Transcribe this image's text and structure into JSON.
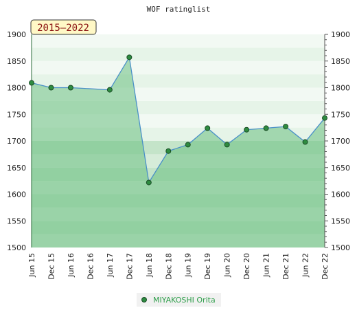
{
  "chart_data": {
    "type": "area",
    "title": "WOF ratinglist",
    "period_badge": "2015–2022",
    "categories": [
      "Jun 15",
      "Dec 15",
      "Jun 16",
      "Dec 16",
      "Jun 17",
      "Dec 17",
      "Jun 18",
      "Dec 18",
      "Jun 19",
      "Dec 19",
      "Jun 20",
      "Dec 20",
      "Jun 21",
      "Dec 21",
      "Jun 22",
      "Dec 22"
    ],
    "series": [
      {
        "name": "MIYAKOSHI Orita",
        "values": [
          1809,
          1800,
          1800,
          null,
          1796,
          1857,
          1622,
          1681,
          1693,
          1724,
          1693,
          1721,
          1724,
          1727,
          1698,
          1743
        ]
      }
    ],
    "ylim": [
      1500,
      1900
    ],
    "yticks": [
      1500,
      1550,
      1600,
      1650,
      1700,
      1750,
      1800,
      1850,
      1900
    ],
    "grid": false,
    "legend_position": "bottom",
    "colors": {
      "line": "#4a90c8",
      "area_fill": "#6abf7f",
      "marker_fill": "#2e8b40",
      "marker_stroke": "#1a4d26",
      "legend_text": "#2e9e4a",
      "badge_bg": "#fff8c6",
      "badge_text": "#8a1010"
    }
  }
}
